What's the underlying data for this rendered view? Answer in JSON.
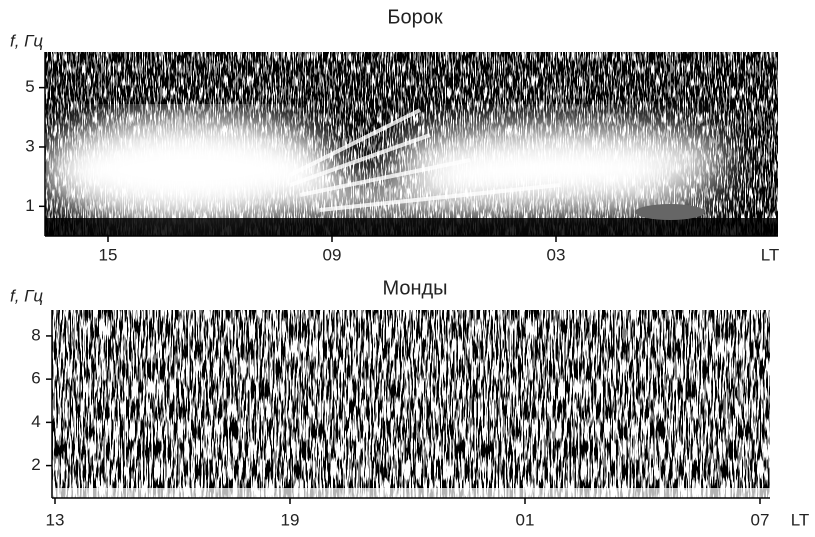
{
  "chart_data": [
    {
      "type": "spectrogram",
      "title": "Борок",
      "ylabel": "f, Гц",
      "xlabel": "LT",
      "categories": [
        "15",
        "09",
        "03"
      ],
      "ylim": [
        0,
        6.2
      ],
      "yticks": [
        1,
        3,
        5
      ]
    },
    {
      "type": "spectrogram",
      "title": "Монды",
      "ylabel": "f, Гц",
      "xlabel": "LT",
      "categories": [
        "13",
        "19",
        "01",
        "07"
      ],
      "ylim": [
        0.5,
        9.2
      ],
      "yticks": [
        2,
        4,
        6,
        8
      ]
    }
  ]
}
